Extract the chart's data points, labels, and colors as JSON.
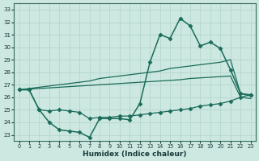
{
  "xlabel": "Humidex (Indice chaleur)",
  "bg_color": "#cce8e0",
  "grid_color": "#b8d8d0",
  "line_color": "#1a6b5a",
  "x_ticks": [
    0,
    1,
    2,
    3,
    4,
    5,
    6,
    7,
    8,
    9,
    10,
    11,
    12,
    13,
    14,
    15,
    16,
    17,
    18,
    19,
    20,
    21,
    22,
    23
  ],
  "y_ticks": [
    23,
    24,
    25,
    26,
    27,
    28,
    29,
    30,
    31,
    32,
    33
  ],
  "xlim": [
    -0.5,
    23.5
  ],
  "ylim": [
    22.5,
    33.5
  ],
  "series": [
    {
      "x": [
        0,
        1,
        2,
        3,
        4,
        5,
        6,
        7,
        8,
        9,
        10,
        11,
        12,
        13,
        14,
        15,
        16,
        17,
        18,
        19,
        20,
        21,
        22,
        23
      ],
      "y": [
        26.6,
        26.6,
        25.0,
        24.0,
        23.4,
        23.3,
        23.2,
        22.8,
        24.3,
        24.3,
        24.3,
        24.2,
        25.5,
        28.8,
        31.0,
        30.7,
        32.3,
        31.7,
        30.1,
        30.4,
        29.9,
        28.2,
        26.3,
        26.2
      ],
      "marker": "D",
      "markersize": 2.5,
      "linewidth": 1.1
    },
    {
      "x": [
        0,
        1,
        2,
        3,
        4,
        5,
        6,
        7,
        8,
        9,
        10,
        11,
        12,
        13,
        14,
        15,
        16,
        17,
        18,
        19,
        20,
        21,
        22,
        23
      ],
      "y": [
        26.6,
        26.7,
        26.8,
        26.9,
        27.0,
        27.1,
        27.2,
        27.3,
        27.5,
        27.6,
        27.7,
        27.8,
        27.9,
        28.0,
        28.1,
        28.3,
        28.4,
        28.5,
        28.6,
        28.7,
        28.8,
        29.0,
        26.3,
        26.1
      ],
      "marker": null,
      "markersize": 0,
      "linewidth": 0.9
    },
    {
      "x": [
        0,
        1,
        2,
        3,
        4,
        5,
        6,
        7,
        8,
        9,
        10,
        11,
        12,
        13,
        14,
        15,
        16,
        17,
        18,
        19,
        20,
        21,
        22,
        23
      ],
      "y": [
        26.6,
        26.65,
        26.7,
        26.75,
        26.8,
        26.85,
        26.9,
        26.95,
        27.0,
        27.05,
        27.1,
        27.15,
        27.2,
        27.25,
        27.3,
        27.35,
        27.4,
        27.5,
        27.55,
        27.6,
        27.65,
        27.7,
        26.0,
        25.9
      ],
      "marker": null,
      "markersize": 0,
      "linewidth": 0.9
    },
    {
      "x": [
        0,
        1,
        2,
        3,
        4,
        5,
        6,
        7,
        8,
        9,
        10,
        11,
        12,
        13,
        14,
        15,
        16,
        17,
        18,
        19,
        20,
        21,
        22,
        23
      ],
      "y": [
        26.6,
        26.6,
        25.0,
        24.9,
        25.0,
        24.9,
        24.8,
        24.3,
        24.4,
        24.4,
        24.5,
        24.5,
        24.6,
        24.7,
        24.8,
        24.9,
        25.0,
        25.1,
        25.3,
        25.4,
        25.5,
        25.7,
        26.0,
        26.2
      ],
      "marker": "D",
      "markersize": 2.5,
      "linewidth": 0.9
    }
  ]
}
